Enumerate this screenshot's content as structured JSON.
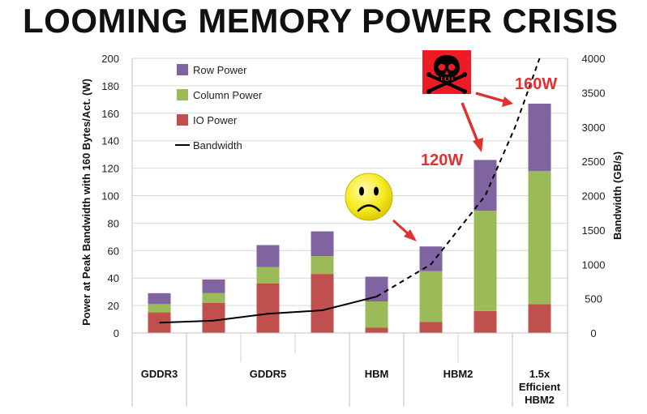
{
  "page": {
    "title": "LOOMING MEMORY POWER CRISIS"
  },
  "chart_data": {
    "type": "bar",
    "stacked": true,
    "categories": [
      "GDDR3 a",
      "GDDR5 a",
      "GDDR5 b",
      "GDDR5 c",
      "HBM a",
      "HBM2 a",
      "HBM2 b",
      "1.5x Efficient HBM2 a"
    ],
    "group_labels": [
      {
        "label": "GDDR3",
        "lines": [
          "GDDR3"
        ],
        "span": [
          0,
          0
        ]
      },
      {
        "label": "GDDR5",
        "lines": [
          "GDDR5"
        ],
        "span": [
          1,
          3
        ]
      },
      {
        "label": "HBM",
        "lines": [
          "HBM"
        ],
        "span": [
          4,
          4
        ]
      },
      {
        "label": "HBM2",
        "lines": [
          "HBM2"
        ],
        "span": [
          5,
          6
        ]
      },
      {
        "label": "1.5x Efficient HBM2",
        "lines": [
          "1.5x",
          "Efficient",
          "HBM2"
        ],
        "span": [
          7,
          7
        ]
      }
    ],
    "series": [
      {
        "name": "IO Power",
        "color": "#c0504d",
        "values": [
          15,
          22,
          36,
          43,
          4,
          8,
          16,
          21
        ]
      },
      {
        "name": "Column Power",
        "color": "#9bbb59",
        "values": [
          6,
          7,
          12,
          13,
          19,
          37,
          73,
          97
        ]
      },
      {
        "name": "Row Power",
        "color": "#8064a2",
        "values": [
          8,
          10,
          16,
          18,
          18,
          18,
          37,
          49
        ]
      }
    ],
    "line_series": {
      "name": "Bandwidth",
      "axis": "right",
      "color": "#000000",
      "x_positions": [
        0,
        1,
        2,
        3,
        4,
        5,
        6,
        6.55,
        7
      ],
      "values": [
        150,
        180,
        280,
        330,
        530,
        1000,
        2000,
        3000,
        4000
      ],
      "solid_until_index": 4
    },
    "legend": {
      "placement": "top-left",
      "order": [
        "Row Power",
        "Column Power",
        "IO Power",
        "Bandwidth"
      ]
    },
    "ylabel": "Power at Peak Bandwidth with 160 Bytes/Act. (W)",
    "y2label": "Bandwidth (GB/s)",
    "ylim": [
      0,
      200
    ],
    "y2lim": [
      0,
      4000
    ],
    "yticks": [
      0,
      20,
      40,
      60,
      80,
      100,
      120,
      140,
      160,
      180,
      200
    ],
    "y2ticks": [
      0,
      500,
      1000,
      1500,
      2000,
      2500,
      3000,
      3500,
      4000
    ],
    "grid": true,
    "annotations": [
      {
        "text": "120W",
        "color": "#e03030"
      },
      {
        "text": "160W",
        "color": "#e03030"
      }
    ],
    "icons": [
      "sad-face-icon",
      "skull-crossbones-icon"
    ]
  }
}
